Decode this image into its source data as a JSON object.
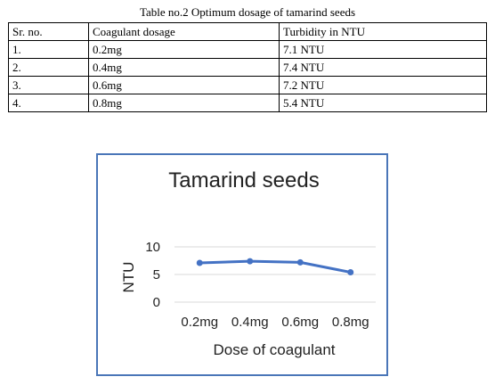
{
  "table": {
    "caption": "Table no.2 Optimum dosage of tamarind seeds",
    "headers": [
      "Sr. no.",
      "Coagulant dosage",
      "Turbidity in NTU"
    ],
    "rows": [
      [
        "1.",
        "0.2mg",
        "7.1 NTU"
      ],
      [
        "2.",
        "0.4mg",
        "7.4 NTU"
      ],
      [
        "3.",
        "0.6mg",
        "7.2 NTU"
      ],
      [
        "4.",
        "0.8mg",
        "5.4 NTU"
      ]
    ]
  },
  "chart_data": {
    "type": "line",
    "title": "Tamarind seeds",
    "xlabel": "Dose of coagulant",
    "ylabel": "NTU",
    "categories": [
      "0.2mg",
      "0.4mg",
      "0.6mg",
      "0.8mg"
    ],
    "series": [
      {
        "values": [
          7.1,
          7.4,
          7.2,
          5.4
        ],
        "color": "#4472c4"
      }
    ],
    "ylim": [
      0,
      10
    ],
    "yticks": [
      0,
      5,
      10
    ],
    "grid": true,
    "legend": "none"
  }
}
